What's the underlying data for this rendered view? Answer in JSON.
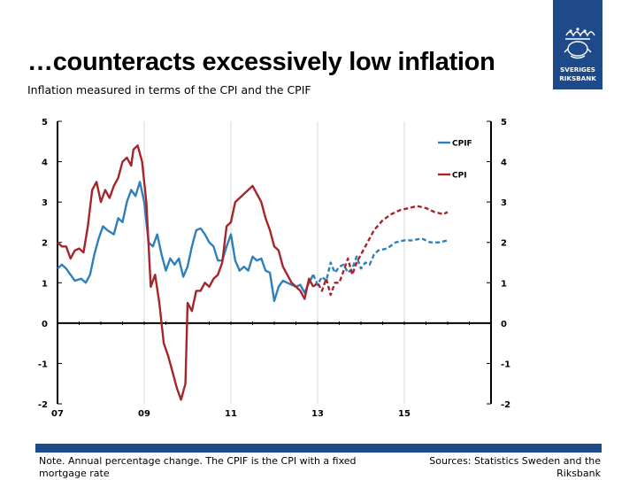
{
  "header": {
    "title": "…counteracts excessively low inflation",
    "subtitle": "Inflation measured in terms of the CPI and the CPIF"
  },
  "logo": {
    "line1": "SVERIGES",
    "line2": "RIKSBANK"
  },
  "footer": {
    "note": "Note. Annual percentage change. The CPIF is the CPI with a fixed mortgage rate",
    "sources": "Sources: Statistics Sweden and the Riksbank"
  },
  "colors": {
    "cpif": "#2f7fbd",
    "cpi": "#a6252b",
    "brand": "#1e4a8c"
  },
  "chart_data": {
    "type": "line",
    "title": "Inflation measured in terms of the CPI and the CPIF",
    "xlabel": "",
    "ylabel": "",
    "xlim": [
      2007,
      2017.0
    ],
    "ylim": [
      -2,
      5
    ],
    "yticks": [
      -2,
      -1,
      0,
      1,
      2,
      3,
      4,
      5
    ],
    "yticks_right": [
      -2,
      -1,
      0,
      1,
      2,
      3,
      4,
      5
    ],
    "xticks": [
      {
        "value": 2007,
        "label": "07"
      },
      {
        "value": 2009,
        "label": "09"
      },
      {
        "value": 2011,
        "label": "11"
      },
      {
        "value": 2013,
        "label": "13"
      },
      {
        "value": 2015,
        "label": "15"
      }
    ],
    "forecast_start": 2012.9,
    "legend_position": "top-right",
    "series": [
      {
        "name": "CPIF",
        "color_key": "cpif",
        "points": [
          [
            2007.0,
            1.35
          ],
          [
            2007.1,
            1.45
          ],
          [
            2007.2,
            1.35
          ],
          [
            2007.3,
            1.2
          ],
          [
            2007.4,
            1.05
          ],
          [
            2007.55,
            1.1
          ],
          [
            2007.65,
            1.0
          ],
          [
            2007.75,
            1.2
          ],
          [
            2007.85,
            1.7
          ],
          [
            2007.95,
            2.1
          ],
          [
            2008.05,
            2.4
          ],
          [
            2008.15,
            2.3
          ],
          [
            2008.3,
            2.2
          ],
          [
            2008.4,
            2.6
          ],
          [
            2008.5,
            2.5
          ],
          [
            2008.6,
            3.0
          ],
          [
            2008.7,
            3.3
          ],
          [
            2008.8,
            3.15
          ],
          [
            2008.9,
            3.5
          ],
          [
            2009.0,
            3.0
          ],
          [
            2009.1,
            2.0
          ],
          [
            2009.2,
            1.9
          ],
          [
            2009.3,
            2.2
          ],
          [
            2009.4,
            1.7
          ],
          [
            2009.5,
            1.3
          ],
          [
            2009.6,
            1.6
          ],
          [
            2009.7,
            1.45
          ],
          [
            2009.8,
            1.6
          ],
          [
            2009.9,
            1.15
          ],
          [
            2010.0,
            1.4
          ],
          [
            2010.1,
            1.9
          ],
          [
            2010.2,
            2.3
          ],
          [
            2010.3,
            2.35
          ],
          [
            2010.4,
            2.2
          ],
          [
            2010.5,
            2.0
          ],
          [
            2010.6,
            1.9
          ],
          [
            2010.7,
            1.55
          ],
          [
            2010.8,
            1.55
          ],
          [
            2010.9,
            1.9
          ],
          [
            2011.0,
            2.2
          ],
          [
            2011.1,
            1.55
          ],
          [
            2011.2,
            1.3
          ],
          [
            2011.3,
            1.4
          ],
          [
            2011.4,
            1.3
          ],
          [
            2011.5,
            1.65
          ],
          [
            2011.6,
            1.55
          ],
          [
            2011.7,
            1.6
          ],
          [
            2011.8,
            1.3
          ],
          [
            2011.9,
            1.25
          ],
          [
            2012.0,
            0.55
          ],
          [
            2012.1,
            0.9
          ],
          [
            2012.2,
            1.05
          ],
          [
            2012.3,
            1.0
          ],
          [
            2012.4,
            0.95
          ],
          [
            2012.5,
            0.9
          ],
          [
            2012.6,
            0.95
          ],
          [
            2012.7,
            0.75
          ],
          [
            2012.8,
            1.0
          ],
          [
            2012.9,
            1.2
          ],
          [
            2013.0,
            0.95
          ],
          [
            2013.1,
            1.15
          ],
          [
            2013.2,
            1.05
          ],
          [
            2013.3,
            1.5
          ],
          [
            2013.4,
            1.25
          ],
          [
            2013.5,
            1.4
          ],
          [
            2013.6,
            1.45
          ],
          [
            2013.7,
            1.25
          ],
          [
            2013.8,
            1.35
          ],
          [
            2013.9,
            1.65
          ],
          [
            2014.0,
            1.35
          ],
          [
            2014.1,
            1.5
          ],
          [
            2014.2,
            1.45
          ],
          [
            2014.3,
            1.7
          ],
          [
            2014.4,
            1.8
          ],
          [
            2014.6,
            1.85
          ],
          [
            2014.8,
            2.0
          ],
          [
            2015.0,
            2.05
          ],
          [
            2015.2,
            2.05
          ],
          [
            2015.4,
            2.1
          ],
          [
            2015.6,
            2.0
          ],
          [
            2015.8,
            2.0
          ],
          [
            2016.0,
            2.05
          ]
        ]
      },
      {
        "name": "CPI",
        "color_key": "cpi",
        "points": [
          [
            2007.0,
            2.0
          ],
          [
            2007.1,
            1.9
          ],
          [
            2007.2,
            1.9
          ],
          [
            2007.3,
            1.6
          ],
          [
            2007.4,
            1.8
          ],
          [
            2007.5,
            1.85
          ],
          [
            2007.6,
            1.75
          ],
          [
            2007.7,
            2.4
          ],
          [
            2007.8,
            3.3
          ],
          [
            2007.9,
            3.5
          ],
          [
            2008.0,
            3.0
          ],
          [
            2008.1,
            3.3
          ],
          [
            2008.2,
            3.1
          ],
          [
            2008.3,
            3.4
          ],
          [
            2008.4,
            3.6
          ],
          [
            2008.5,
            4.0
          ],
          [
            2008.6,
            4.1
          ],
          [
            2008.7,
            3.9
          ],
          [
            2008.75,
            4.3
          ],
          [
            2008.85,
            4.4
          ],
          [
            2008.95,
            4.0
          ],
          [
            2009.05,
            3.0
          ],
          [
            2009.15,
            0.9
          ],
          [
            2009.25,
            1.2
          ],
          [
            2009.35,
            0.5
          ],
          [
            2009.45,
            -0.5
          ],
          [
            2009.55,
            -0.8
          ],
          [
            2009.65,
            -1.2
          ],
          [
            2009.75,
            -1.6
          ],
          [
            2009.85,
            -1.9
          ],
          [
            2009.95,
            -1.5
          ],
          [
            2010.0,
            0.5
          ],
          [
            2010.1,
            0.3
          ],
          [
            2010.2,
            0.8
          ],
          [
            2010.3,
            0.8
          ],
          [
            2010.4,
            1.0
          ],
          [
            2010.5,
            0.9
          ],
          [
            2010.6,
            1.1
          ],
          [
            2010.7,
            1.2
          ],
          [
            2010.8,
            1.5
          ],
          [
            2010.9,
            2.4
          ],
          [
            2011.0,
            2.5
          ],
          [
            2011.1,
            3.0
          ],
          [
            2011.2,
            3.1
          ],
          [
            2011.3,
            3.2
          ],
          [
            2011.4,
            3.3
          ],
          [
            2011.5,
            3.4
          ],
          [
            2011.6,
            3.2
          ],
          [
            2011.7,
            3.0
          ],
          [
            2011.8,
            2.6
          ],
          [
            2011.9,
            2.3
          ],
          [
            2012.0,
            1.9
          ],
          [
            2012.1,
            1.8
          ],
          [
            2012.2,
            1.4
          ],
          [
            2012.3,
            1.2
          ],
          [
            2012.4,
            1.0
          ],
          [
            2012.5,
            0.9
          ],
          [
            2012.6,
            0.8
          ],
          [
            2012.7,
            0.6
          ],
          [
            2012.8,
            1.1
          ],
          [
            2012.9,
            0.9
          ],
          [
            2013.0,
            1.0
          ],
          [
            2013.1,
            0.8
          ],
          [
            2013.2,
            1.1
          ],
          [
            2013.3,
            0.7
          ],
          [
            2013.4,
            1.0
          ],
          [
            2013.5,
            1.0
          ],
          [
            2013.6,
            1.3
          ],
          [
            2013.7,
            1.6
          ],
          [
            2013.8,
            1.2
          ],
          [
            2013.9,
            1.5
          ],
          [
            2014.0,
            1.7
          ],
          [
            2014.1,
            1.9
          ],
          [
            2014.2,
            2.1
          ],
          [
            2014.3,
            2.3
          ],
          [
            2014.5,
            2.55
          ],
          [
            2014.7,
            2.7
          ],
          [
            2014.9,
            2.8
          ],
          [
            2015.1,
            2.85
          ],
          [
            2015.3,
            2.9
          ],
          [
            2015.5,
            2.85
          ],
          [
            2015.7,
            2.75
          ],
          [
            2015.9,
            2.7
          ],
          [
            2016.0,
            2.75
          ]
        ]
      }
    ]
  }
}
